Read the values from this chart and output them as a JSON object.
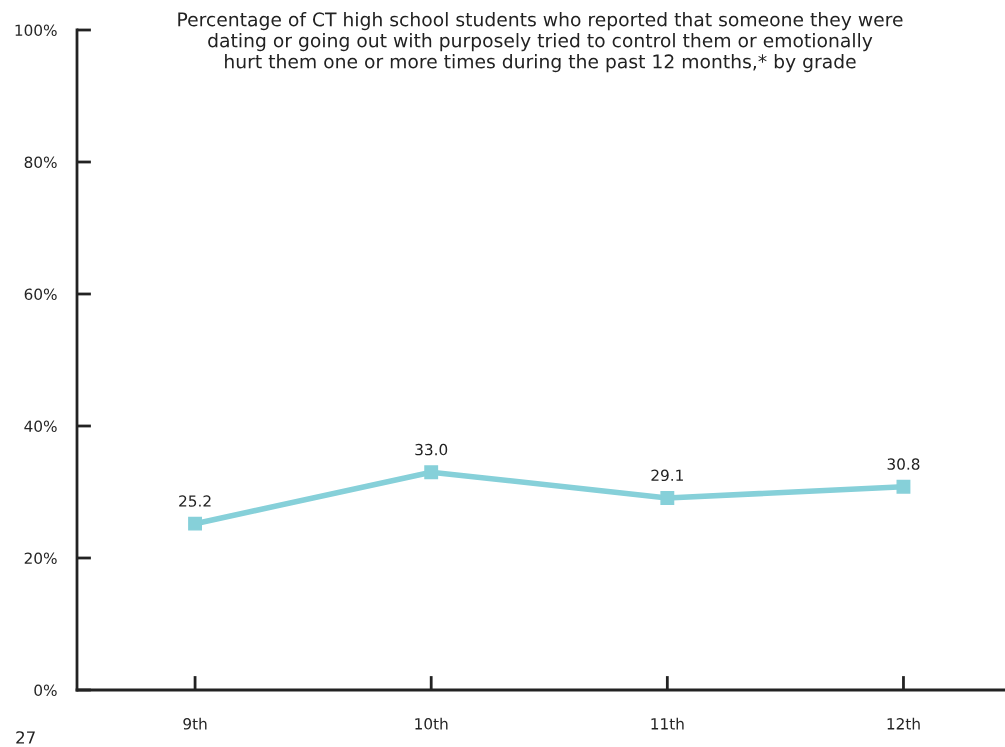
{
  "chart_data": {
    "type": "line",
    "title": "Percentage of CT high school students who reported that someone they were\ndating or going out with purposely tried to control them or emotionally\nhurt them one or more times during the past 12 months,* by grade",
    "categories": [
      "9th",
      "10th",
      "11th",
      "12th"
    ],
    "series": [
      {
        "color": "#86d0d9",
        "values": [
          25.2,
          33.0,
          29.1,
          30.8
        ],
        "value_labels": [
          "25.2",
          "33.0",
          "29.1",
          "30.8"
        ]
      }
    ],
    "ylim": [
      0,
      100
    ],
    "yticks": [
      {
        "value": 0,
        "label": "0%"
      },
      {
        "value": 20,
        "label": "20%"
      },
      {
        "value": 40,
        "label": "40%"
      },
      {
        "value": 60,
        "label": "60%"
      },
      {
        "value": 80,
        "label": "80%"
      },
      {
        "value": 100,
        "label": "100%"
      }
    ],
    "marker": "square",
    "line_style": "solid",
    "grid": false,
    "legend": false,
    "annotations": [
      "27"
    ]
  }
}
